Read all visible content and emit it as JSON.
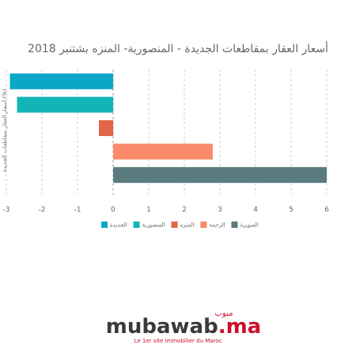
{
  "chart_data": {
    "type": "bar",
    "orientation": "horizontal",
    "title": "أسعار العقار بمقاطعات الجديدة - المنصورية- المنزه بشتنبر 2018",
    "y_label": "أسعار العقار بمقاطعات الجديدة (%)",
    "series": [
      {
        "name": "الجديدة",
        "color": "#0aa7c9",
        "values": [
          -2.9
        ]
      },
      {
        "name": "المنصورية",
        "color": "#13b4b6",
        "values": [
          -2.7
        ]
      },
      {
        "name": "المنزه",
        "color": "#e3654a",
        "values": [
          -0.4
        ]
      },
      {
        "name": "الرحمة",
        "color": "#fb8a6b",
        "values": [
          2.8
        ]
      },
      {
        "name": "الصويرة",
        "color": "#5a7b80",
        "values": [
          6
        ]
      }
    ],
    "xlim": [
      -3,
      6
    ],
    "xticks": [
      -3,
      -2,
      -1,
      0,
      1,
      2,
      3,
      4,
      5,
      6
    ],
    "grid": true,
    "legend": "bottom"
  },
  "branding": {
    "logo": "mubawab",
    "logo_suffix": ".ma",
    "arabic": "مبوب",
    "tagline": "Le 1er site immobilier du Maroc"
  }
}
